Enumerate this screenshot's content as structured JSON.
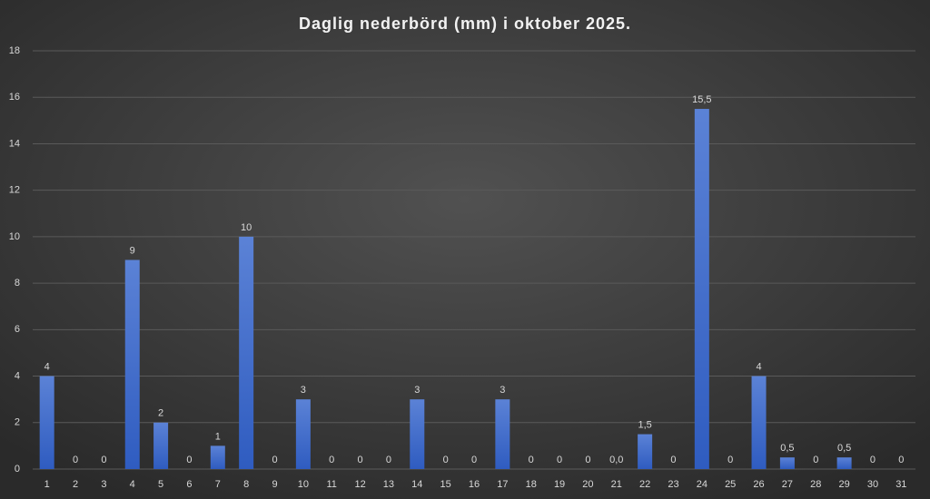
{
  "chart_data": {
    "type": "bar",
    "title": "Daglig nederbörd (mm) i oktober 2025.",
    "categories": [
      "1",
      "2",
      "3",
      "4",
      "5",
      "6",
      "7",
      "8",
      "9",
      "10",
      "11",
      "12",
      "13",
      "14",
      "15",
      "16",
      "17",
      "18",
      "19",
      "20",
      "21",
      "22",
      "23",
      "24",
      "25",
      "26",
      "27",
      "28",
      "29",
      "30",
      "31"
    ],
    "values": [
      4,
      0,
      0,
      9,
      2,
      0,
      1,
      10,
      0,
      3,
      0,
      0,
      0,
      3,
      0,
      0,
      3,
      0,
      0,
      0,
      0,
      1.5,
      0,
      15.5,
      0,
      4,
      0.5,
      0,
      0.5,
      0,
      0
    ],
    "value_labels": [
      "4",
      "0",
      "0",
      "9",
      "2",
      "0",
      "1",
      "10",
      "0",
      "3",
      "0",
      "0",
      "0",
      "3",
      "0",
      "0",
      "3",
      "0",
      "0",
      "0",
      "0,0",
      "1,5",
      "0",
      "15,5",
      "0",
      "4",
      "0,5",
      "0",
      "0,5",
      "0",
      "0"
    ],
    "color": "#4472c4",
    "ylim": [
      0,
      18
    ],
    "yticks": [
      0,
      2,
      4,
      6,
      8,
      10,
      12,
      14,
      16,
      18
    ],
    "grid": true
  }
}
